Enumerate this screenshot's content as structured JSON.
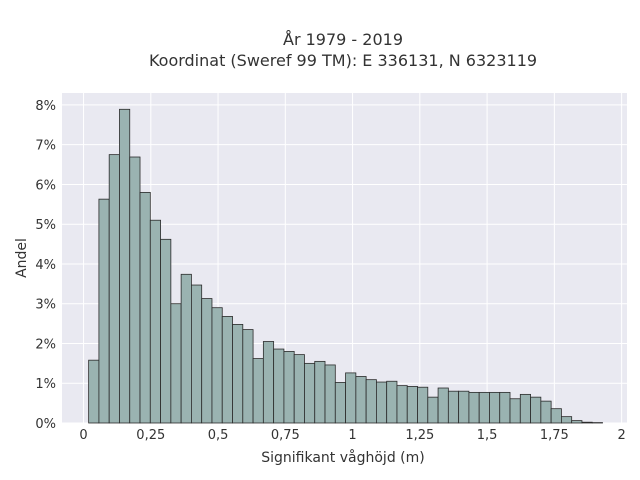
{
  "chart_data": {
    "type": "bar",
    "title_line1": "År 1979 - 2019",
    "title_line2": "Koordinat (Sweref 99 TM): E 336131, N 6323119",
    "xlabel": "Signifikant våghöjd (m)",
    "ylabel": "Andel",
    "xlim": [
      -0.08,
      2.02
    ],
    "ylim": [
      0,
      0.083
    ],
    "xticks": [
      {
        "value": 0,
        "label": "0"
      },
      {
        "value": 0.25,
        "label": "0,25"
      },
      {
        "value": 0.5,
        "label": "0,5"
      },
      {
        "value": 0.75,
        "label": "0,75"
      },
      {
        "value": 1,
        "label": "1"
      },
      {
        "value": 1.25,
        "label": "1,25"
      },
      {
        "value": 1.5,
        "label": "1,5"
      },
      {
        "value": 1.75,
        "label": "1,75"
      },
      {
        "value": 2,
        "label": "2"
      }
    ],
    "yticks": [
      {
        "value": 0,
        "label": "0%"
      },
      {
        "value": 0.01,
        "label": "1%"
      },
      {
        "value": 0.02,
        "label": "2%"
      },
      {
        "value": 0.03,
        "label": "3%"
      },
      {
        "value": 0.04,
        "label": "4%"
      },
      {
        "value": 0.05,
        "label": "5%"
      },
      {
        "value": 0.06,
        "label": "6%"
      },
      {
        "value": 0.07,
        "label": "7%"
      },
      {
        "value": 0.08,
        "label": "8%"
      }
    ],
    "bin_start": 0.019,
    "bin_width": 0.0382,
    "values": [
      0.0158,
      0.0563,
      0.0675,
      0.0789,
      0.0669,
      0.058,
      0.051,
      0.0462,
      0.03,
      0.0374,
      0.0347,
      0.0313,
      0.029,
      0.0268,
      0.0248,
      0.0235,
      0.0162,
      0.0205,
      0.0186,
      0.018,
      0.0172,
      0.015,
      0.0155,
      0.0146,
      0.0102,
      0.0126,
      0.0117,
      0.0109,
      0.0103,
      0.0105,
      0.0094,
      0.0092,
      0.009,
      0.0065,
      0.0088,
      0.008,
      0.008,
      0.0077,
      0.0077,
      0.0077,
      0.0077,
      0.0061,
      0.0072,
      0.0065,
      0.0055,
      0.0036,
      0.0016,
      0.0006,
      0.0002,
      0.0001
    ],
    "colors": {
      "bar": "#9ab3b1",
      "edge": "#2b2b2b",
      "background": "#e9e9f1",
      "grid": "#ffffff"
    },
    "grid": true,
    "legend": "none"
  }
}
